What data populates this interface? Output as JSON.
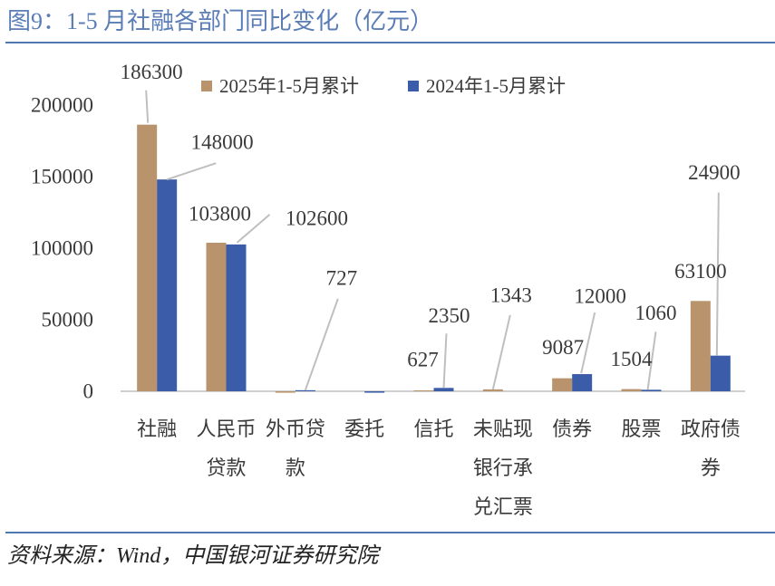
{
  "chart_data": {
    "type": "bar",
    "title": "图9：1-5 月社融各部门同比变化（亿元）",
    "ylim": [
      0,
      200000
    ],
    "yticks": [
      0,
      50000,
      100000,
      150000,
      200000
    ],
    "grid": false,
    "legend_position": "top",
    "categories": [
      "社融",
      "人民币贷款",
      "外币贷款",
      "委托",
      "信托",
      "未贴现银行承兑汇票",
      "债券",
      "股票",
      "政府债券"
    ],
    "series": [
      {
        "name": "2025年1-5月累计",
        "color": "#B9936C",
        "values": [
          186300,
          103800,
          -1000,
          0,
          627,
          1343,
          9087,
          1504,
          63100
        ],
        "labeled": [
          true,
          true,
          false,
          false,
          true,
          true,
          true,
          true,
          true
        ]
      },
      {
        "name": "2024年1-5月累计",
        "color": "#3B5DA9",
        "values": [
          148000,
          102600,
          727,
          -1000,
          2350,
          0,
          12000,
          1060,
          24900
        ],
        "labeled": [
          true,
          true,
          true,
          false,
          true,
          false,
          true,
          true,
          true
        ]
      }
    ]
  },
  "source": "资料来源：Wind，中国银河证券研究院",
  "colors": {
    "title": "#5B7DB6",
    "rule": "#4F78B0",
    "axis": "#BFBFBF",
    "leader": "#BFBFBF",
    "text": "#3A3A3A"
  }
}
